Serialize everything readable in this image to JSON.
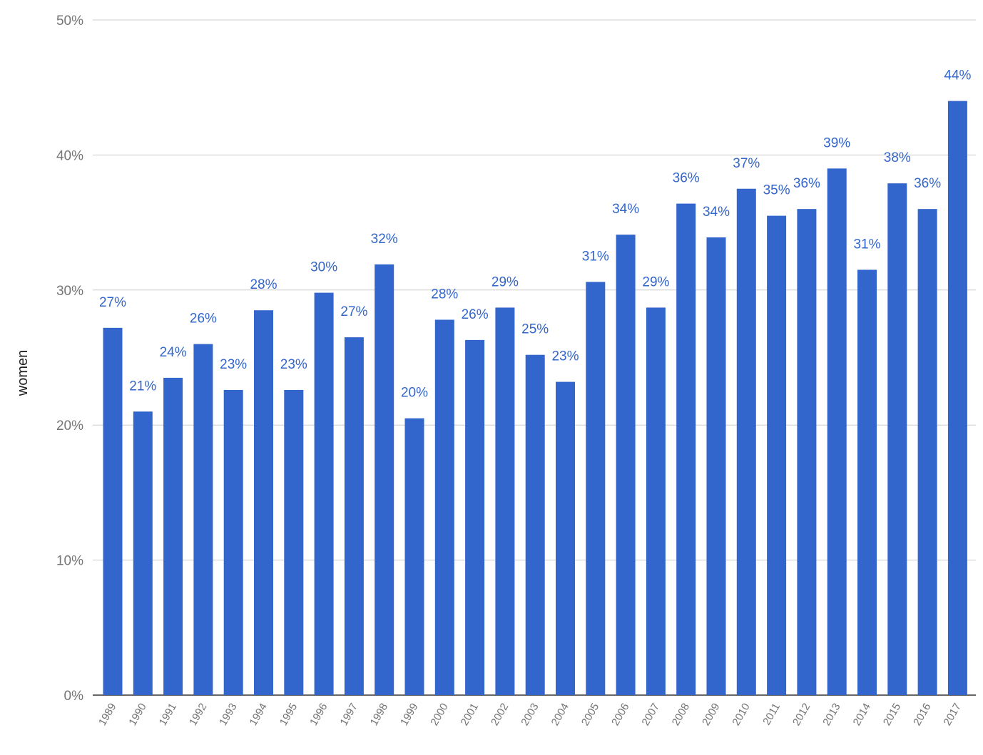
{
  "chart_data": {
    "type": "bar",
    "title": "",
    "xlabel": "",
    "ylabel": "women",
    "ylim": [
      0,
      50
    ],
    "y_ticks": [
      "0%",
      "10%",
      "20%",
      "30%",
      "40%",
      "50%"
    ],
    "grid": true,
    "legend": "none",
    "colors": {
      "bar": "#3366cc",
      "label": "#3366cc",
      "grid": "#cccccc",
      "baseline": "#333333"
    },
    "categories": [
      "1989",
      "1990",
      "1991",
      "1992",
      "1993",
      "1994",
      "1995",
      "1996",
      "1997",
      "1998",
      "1999",
      "2000",
      "2001",
      "2002",
      "2003",
      "2004",
      "2005",
      "2006",
      "2007",
      "2008",
      "2009",
      "2010",
      "2011",
      "2012",
      "2013",
      "2014",
      "2015",
      "2016",
      "2017"
    ],
    "values": [
      27.2,
      21.0,
      23.5,
      26.0,
      22.6,
      28.5,
      22.6,
      29.8,
      26.5,
      31.9,
      20.5,
      27.8,
      26.3,
      28.7,
      25.2,
      23.2,
      30.6,
      34.1,
      28.7,
      36.4,
      33.9,
      37.5,
      35.5,
      36.0,
      39.0,
      31.5,
      37.9,
      36.0,
      44.0
    ],
    "data_labels": [
      "27%",
      "21%",
      "24%",
      "26%",
      "23%",
      "28%",
      "23%",
      "30%",
      "27%",
      "32%",
      "20%",
      "28%",
      "26%",
      "29%",
      "25%",
      "23%",
      "31%",
      "34%",
      "29%",
      "36%",
      "34%",
      "37%",
      "35%",
      "36%",
      "39%",
      "31%",
      "38%",
      "36%",
      "44%"
    ]
  }
}
